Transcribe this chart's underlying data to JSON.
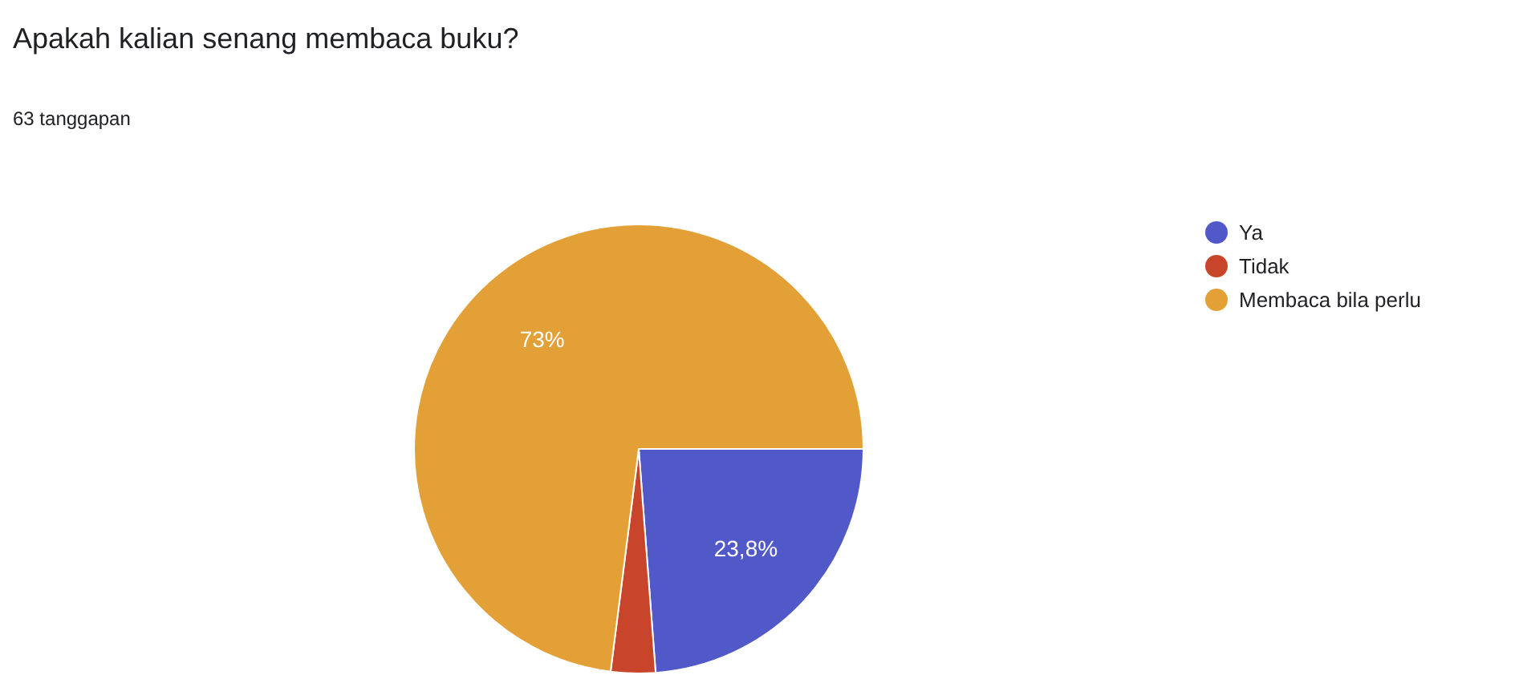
{
  "chart_data": {
    "type": "pie",
    "title": "Apakah kalian senang membaca buku?",
    "subtitle": "63 tanggapan",
    "categories": [
      "Ya",
      "Tidak",
      "Membaca bila perlu"
    ],
    "values": [
      23.8,
      3.2,
      73
    ],
    "colors": [
      "#5159c9",
      "#c8442a",
      "#e2a036"
    ],
    "value_labels": [
      "23,8%",
      null,
      "73%"
    ],
    "legend": "top right"
  }
}
